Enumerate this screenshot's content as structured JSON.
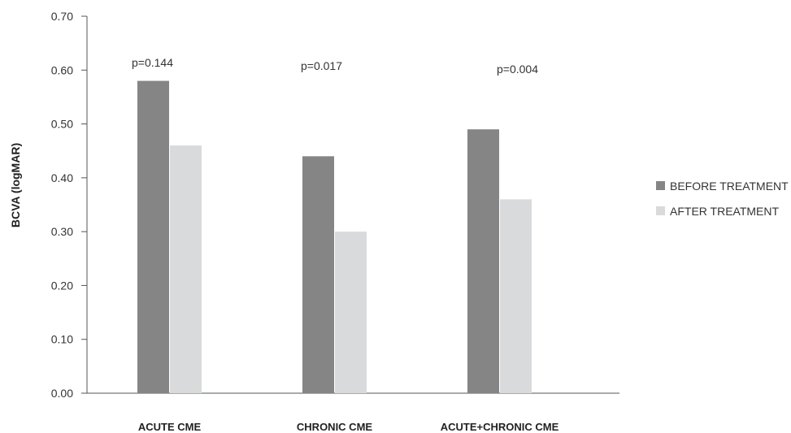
{
  "chart_data": {
    "type": "bar",
    "title": "",
    "xlabel": "",
    "ylabel": "BCVA (logMAR)",
    "ylim": [
      0,
      0.7
    ],
    "yticks": [
      "0.00",
      "0.10",
      "0.20",
      "0.30",
      "0.40",
      "0.50",
      "0.60",
      "0.70"
    ],
    "categories": [
      "ACUTE CME",
      "CHRONIC CME",
      "ACUTE+CHRONIC CME"
    ],
    "series": [
      {
        "name": "BEFORE TREATMENT",
        "values": [
          0.58,
          0.44,
          0.49
        ],
        "color": "#858585"
      },
      {
        "name": "AFTER TREATMENT",
        "values": [
          0.46,
          0.3,
          0.36
        ],
        "color": "#d9dadb"
      }
    ],
    "annotations": [
      "p=0.144",
      "p=0.017",
      "p=0.004"
    ],
    "grid": false,
    "legend_position": "right"
  }
}
